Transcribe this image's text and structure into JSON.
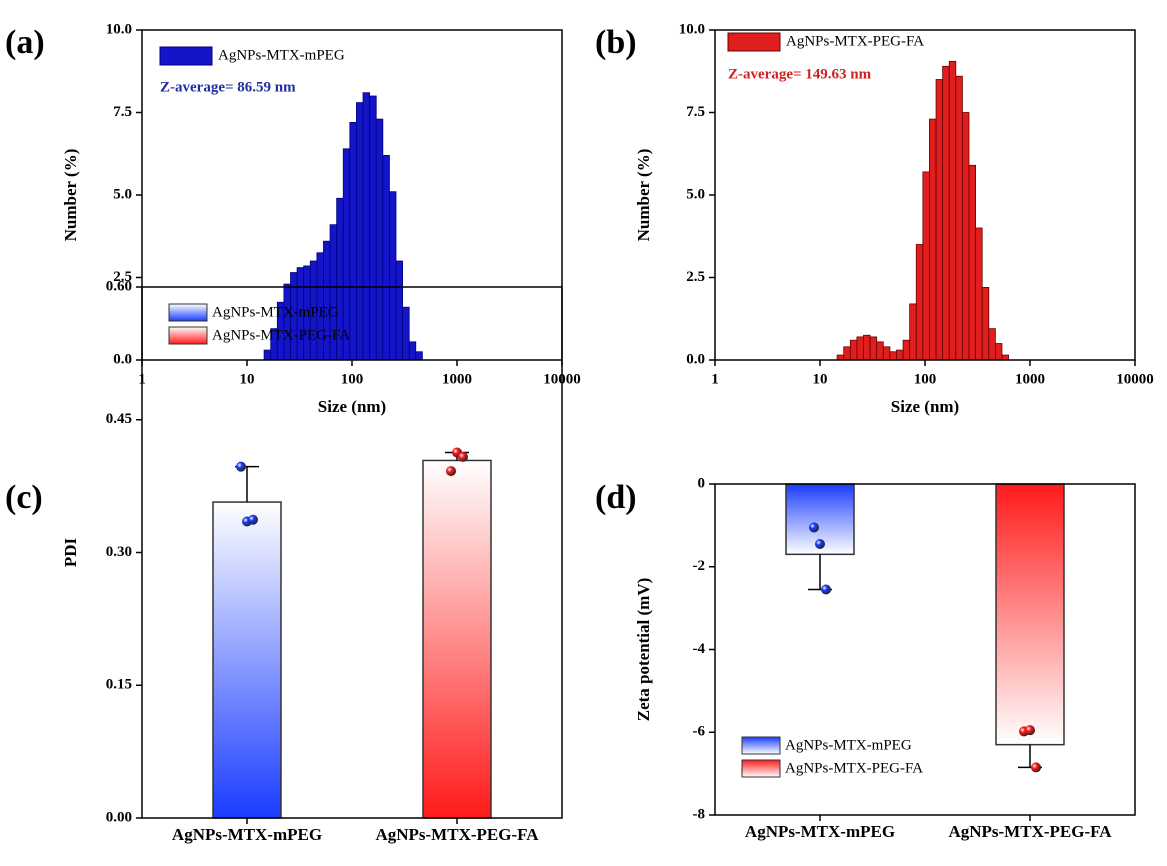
{
  "chart_data": [
    {
      "type": "histogram",
      "panel_label": "(a)",
      "name": "AgNPs-MTX-mPEG",
      "color": "#1414c8",
      "edge_color": "#000080",
      "annotation": "Z-average= 86.59 nm",
      "annotation_color": "#1f2fa0",
      "xlabel": "Size (nm)",
      "ylabel": "Number (%)",
      "xscale": "log",
      "xlim": [
        1,
        10000
      ],
      "xticks": [
        1,
        10,
        100,
        1000,
        10000
      ],
      "ylim": [
        0,
        10
      ],
      "yticks": [
        {
          "value": 0,
          "label": "0.0"
        },
        2.5,
        {
          "value": 5,
          "label": "5.0"
        },
        7.5,
        {
          "value": 10,
          "label": "10.0"
        }
      ],
      "bins": [
        14.55,
        16.82,
        19.44,
        22.46,
        25.96,
        29.99,
        34.66,
        40.06,
        46.29,
        53.49,
        61.8,
        71.42,
        82.53,
        95.37,
        110.2,
        127.4,
        147.2,
        170.1,
        196.6,
        227.2,
        262.4,
        303.3,
        350.5,
        405.0,
        468.1
      ],
      "values": [
        0.3,
        0.95,
        1.75,
        2.3,
        2.65,
        2.8,
        2.85,
        3.0,
        3.25,
        3.6,
        4.1,
        4.9,
        6.4,
        7.2,
        7.8,
        8.1,
        8.0,
        7.3,
        6.2,
        5.1,
        3.0,
        1.6,
        0.55,
        0.25
      ]
    },
    {
      "type": "histogram",
      "panel_label": "(b)",
      "name": "AgNPs-MTX-PEG-FA",
      "color": "#e01e1e",
      "edge_color": "#6a0000",
      "annotation": "Z-average= 149.63 nm",
      "annotation_color": "#d42020",
      "xlabel": "Size (nm)",
      "ylabel": "Number (%)",
      "xscale": "log",
      "xlim": [
        1,
        10000
      ],
      "xticks": [
        1,
        10,
        100,
        1000,
        10000
      ],
      "ylim": [
        0,
        10
      ],
      "yticks": [
        {
          "value": 0,
          "label": "0.0"
        },
        2.5,
        {
          "value": 5,
          "label": "5.0"
        },
        7.5,
        {
          "value": 10,
          "label": "10.0"
        }
      ],
      "bins": [
        14.55,
        16.82,
        19.44,
        22.46,
        25.96,
        29.99,
        34.66,
        40.06,
        46.29,
        53.49,
        61.8,
        71.42,
        82.53,
        95.37,
        110.2,
        127.4,
        147.2,
        170.1,
        196.6,
        227.2,
        262.4,
        303.3,
        350.5,
        405.0,
        468.1,
        540.8,
        625.1
      ],
      "values": [
        0.15,
        0.4,
        0.6,
        0.7,
        0.75,
        0.7,
        0.55,
        0.4,
        0.25,
        0.3,
        0.6,
        1.7,
        3.5,
        5.7,
        7.3,
        8.5,
        8.9,
        9.05,
        8.6,
        7.5,
        5.9,
        4.0,
        2.2,
        0.95,
        0.5,
        0.15
      ]
    },
    {
      "type": "bar",
      "panel_label": "(c)",
      "ylabel": "PDI",
      "categories": [
        "AgNPs-MTX-mPEG",
        "AgNPs-MTX-PEG-FA"
      ],
      "values": [
        0.357,
        0.404
      ],
      "errors": [
        0.04,
        0.009
      ],
      "points": [
        [
          0.397,
          0.335,
          0.337
        ],
        [
          0.392,
          0.413,
          0.408
        ]
      ],
      "colors": [
        "#1a3cff",
        "#ff1a1a"
      ],
      "ylim": [
        0,
        0.6
      ],
      "yticks": [
        {
          "value": 0,
          "label": "0.00"
        },
        0.15,
        {
          "value": 0.3,
          "label": "0.30"
        },
        0.45,
        {
          "value": 0.6,
          "label": "0.60"
        }
      ],
      "legend": "upper left"
    },
    {
      "type": "bar",
      "panel_label": "(d)",
      "ylabel": "Zeta potential (mV)",
      "categories": [
        "AgNPs-MTX-mPEG",
        "AgNPs-MTX-PEG-FA"
      ],
      "values": [
        -1.7,
        -6.3
      ],
      "errors": [
        0.85,
        0.55
      ],
      "points": [
        [
          -1.05,
          -1.45,
          -2.55
        ],
        [
          -5.98,
          -5.95,
          -6.85
        ]
      ],
      "colors": [
        "#1a3cff",
        "#ff1a1a"
      ],
      "ylim": [
        -8,
        0
      ],
      "yticks": [
        -8,
        -6,
        -4,
        -2,
        0
      ],
      "legend": "lower left"
    }
  ]
}
